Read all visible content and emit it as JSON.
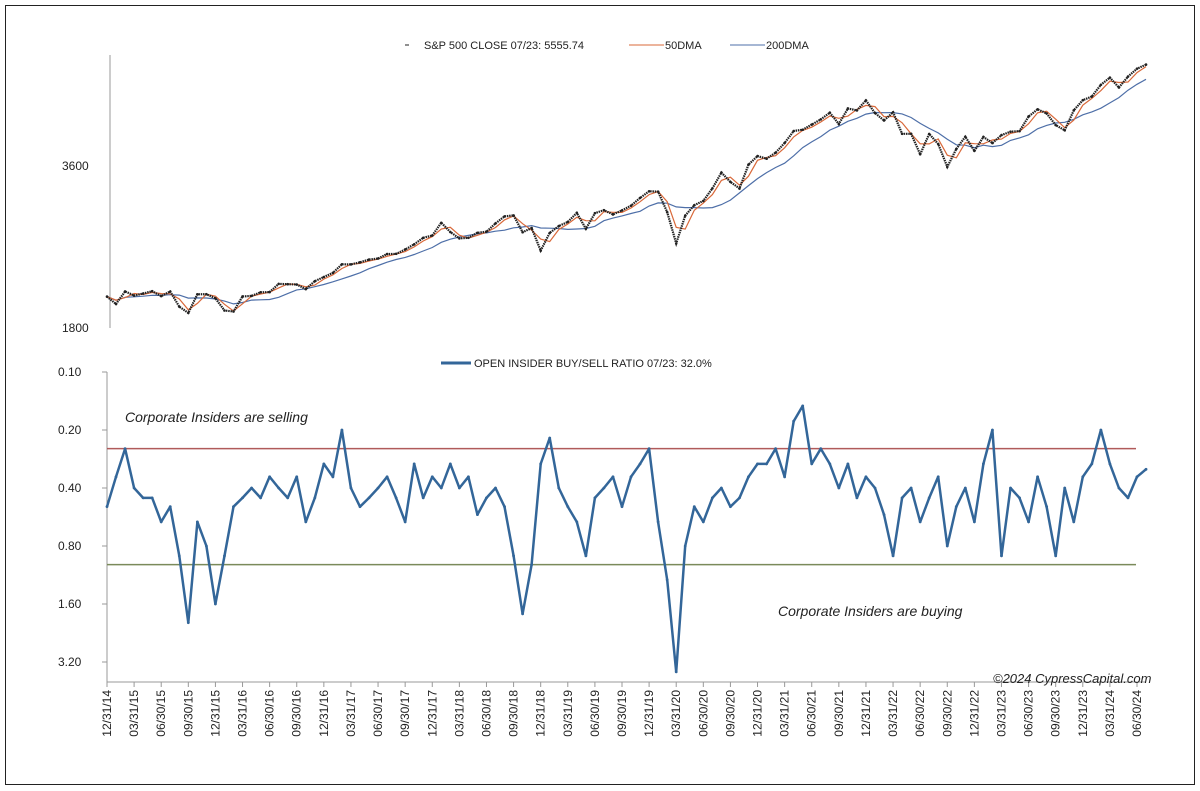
{
  "chart_data": [
    {
      "type": "line",
      "title": "",
      "yscale": "log",
      "ylim": [
        1800,
        6300
      ],
      "yticks": [
        "3600",
        "1800"
      ],
      "ytick_values": [
        3600,
        1800
      ],
      "legend": {
        "placement": "top-center",
        "entries": [
          {
            "label": "S&P 500 CLOSE 07/23: 5555.74",
            "color": "#222222"
          },
          {
            "label": "50DMA",
            "color": "#d9693a"
          },
          {
            "label": "200DMA",
            "color": "#4e6fa8"
          }
        ]
      },
      "x_start": "12/2014",
      "x_step": "month",
      "series": [
        {
          "name": "S&P 500 CLOSE",
          "values": [
            2059,
            1995,
            2105,
            2068,
            2086,
            2107,
            2063,
            2104,
            1972,
            1920,
            2079,
            2080,
            2044,
            1940,
            1932,
            2060,
            2065,
            2097,
            2099,
            2174,
            2171,
            2168,
            2126,
            2199,
            2239,
            2279,
            2364,
            2363,
            2384,
            2412,
            2423,
            2470,
            2472,
            2519,
            2575,
            2648,
            2674,
            2824,
            2714,
            2641,
            2648,
            2705,
            2718,
            2816,
            2902,
            2914,
            2712,
            2760,
            2507,
            2704,
            2784,
            2834,
            2946,
            2752,
            2942,
            2980,
            2926,
            2977,
            3038,
            3141,
            3231,
            3226,
            2954,
            2585,
            2912,
            3044,
            3100,
            3271,
            3500,
            3363,
            3270,
            3622,
            3756,
            3714,
            3811,
            3973,
            4181,
            4204,
            4298,
            4395,
            4523,
            4308,
            4605,
            4567,
            4766,
            4516,
            4374,
            4530,
            4132,
            4132,
            3785,
            4130,
            3955,
            3586,
            3872,
            4080,
            3840,
            4077,
            3970,
            4109,
            4169,
            4180,
            4450,
            4589,
            4508,
            4288,
            4194,
            4568,
            4770,
            4846,
            5096,
            5254,
            5036,
            5278,
            5460,
            5555.74
          ]
        }
      ]
    },
    {
      "type": "line",
      "title": "OPEN INSIDER BUY/SELL RATIO 07/23: 32.0%",
      "yscale": "log",
      "inverted": true,
      "ylim": [
        0.1,
        4.3
      ],
      "yticks": [
        "0.10",
        "0.20",
        "0.40",
        "0.80",
        "1.60",
        "3.20"
      ],
      "ytick_values": [
        0.1,
        0.2,
        0.4,
        0.8,
        1.6,
        3.2
      ],
      "color": "#336699",
      "reference_lines": [
        {
          "value": 0.25,
          "color": "#b05a5a",
          "label": "Corporate Insiders are selling"
        },
        {
          "value": 1.0,
          "color": "#7a8a5a",
          "label": "Corporate Insiders are buying"
        }
      ],
      "x_start": "12/2014",
      "x_step": "month",
      "values": [
        0.5,
        0.35,
        0.25,
        0.4,
        0.45,
        0.45,
        0.6,
        0.5,
        0.9,
        2.0,
        0.6,
        0.8,
        1.6,
        0.9,
        0.5,
        0.45,
        0.4,
        0.45,
        0.35,
        0.4,
        0.45,
        0.35,
        0.6,
        0.45,
        0.3,
        0.35,
        0.2,
        0.4,
        0.5,
        0.45,
        0.4,
        0.35,
        0.45,
        0.6,
        0.3,
        0.45,
        0.35,
        0.4,
        0.3,
        0.4,
        0.35,
        0.55,
        0.45,
        0.4,
        0.5,
        0.9,
        1.8,
        1.0,
        0.3,
        0.22,
        0.4,
        0.5,
        0.6,
        0.9,
        0.45,
        0.4,
        0.35,
        0.5,
        0.35,
        0.3,
        0.25,
        0.6,
        1.2,
        3.6,
        0.8,
        0.5,
        0.6,
        0.45,
        0.4,
        0.5,
        0.45,
        0.35,
        0.3,
        0.3,
        0.25,
        0.35,
        0.18,
        0.15,
        0.3,
        0.25,
        0.3,
        0.4,
        0.3,
        0.45,
        0.35,
        0.4,
        0.55,
        0.9,
        0.45,
        0.4,
        0.6,
        0.45,
        0.35,
        0.8,
        0.5,
        0.4,
        0.6,
        0.3,
        0.2,
        0.9,
        0.4,
        0.45,
        0.6,
        0.35,
        0.5,
        0.9,
        0.4,
        0.6,
        0.35,
        0.3,
        0.2,
        0.3,
        0.4,
        0.45,
        0.35,
        0.32
      ],
      "xticks": [
        "12/31/14",
        "03/31/15",
        "06/30/15",
        "09/30/15",
        "12/31/15",
        "03/31/16",
        "06/30/16",
        "09/30/16",
        "12/31/16",
        "03/31/17",
        "06/30/17",
        "09/30/17",
        "12/31/17",
        "03/31/18",
        "06/30/18",
        "09/30/18",
        "12/31/18",
        "03/31/19",
        "06/30/19",
        "09/30/19",
        "12/31/19",
        "03/31/20",
        "06/30/20",
        "09/30/20",
        "12/31/20",
        "03/31/21",
        "06/30/21",
        "09/30/21",
        "12/31/21",
        "03/31/22",
        "06/30/22",
        "09/30/22",
        "12/31/22",
        "03/31/23",
        "06/30/23",
        "09/30/23",
        "12/31/23",
        "03/31/24",
        "06/30/24"
      ]
    }
  ],
  "copyright": "©2024 CypressCapital.com"
}
